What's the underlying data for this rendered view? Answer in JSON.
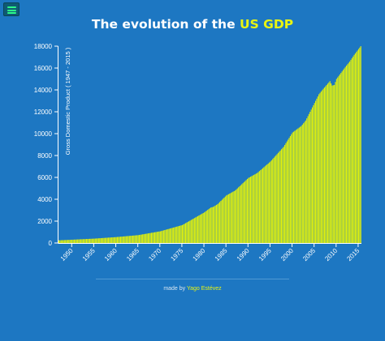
{
  "menu": {
    "icon": "hamburger-menu-icon"
  },
  "title": {
    "prefix": "The evolution of the ",
    "highlight": "US GDP"
  },
  "footer": {
    "prefix": "made by ",
    "author": "Yago Estévez"
  },
  "colors": {
    "background": "#1d77c2",
    "bars": "#e3f20a",
    "title_accent": "#e9f511",
    "axis": "#ffffff"
  },
  "chart_data": {
    "type": "bar",
    "title": "The evolution of the US GDP",
    "xlabel": "",
    "ylabel": "Gross Domestic Product ( 1947 - 2015 )",
    "xlim": [
      1947,
      2015.75
    ],
    "ylim": [
      0,
      18000
    ],
    "y_ticks": [
      0,
      2000,
      4000,
      6000,
      8000,
      10000,
      12000,
      14000,
      16000,
      18000
    ],
    "x_ticks": [
      1950,
      1955,
      1960,
      1965,
      1970,
      1975,
      1980,
      1985,
      1990,
      1995,
      2000,
      2005,
      2010,
      2015
    ],
    "grid": false,
    "legend": "none",
    "bar_interval": "quarterly",
    "series": [
      {
        "x": [
          1947,
          1950,
          1955,
          1960,
          1965,
          1970,
          1975,
          1980,
          1981.5,
          1982,
          1983,
          1985,
          1987,
          1990,
          1992,
          1995,
          1998,
          2000,
          2002,
          2003,
          2005,
          2006,
          2007,
          2008.5,
          2009,
          2009.5,
          2010,
          2012,
          2013,
          2014,
          2015.5
        ],
        "values": [
          245,
          300,
          400,
          540,
          720,
          1070,
          1640,
          2800,
          3250,
          3300,
          3550,
          4350,
          4800,
          5950,
          6400,
          7450,
          8800,
          10100,
          10700,
          11200,
          12800,
          13600,
          14100,
          14800,
          14400,
          14450,
          15000,
          16100,
          16600,
          17200,
          18000
        ]
      }
    ]
  }
}
